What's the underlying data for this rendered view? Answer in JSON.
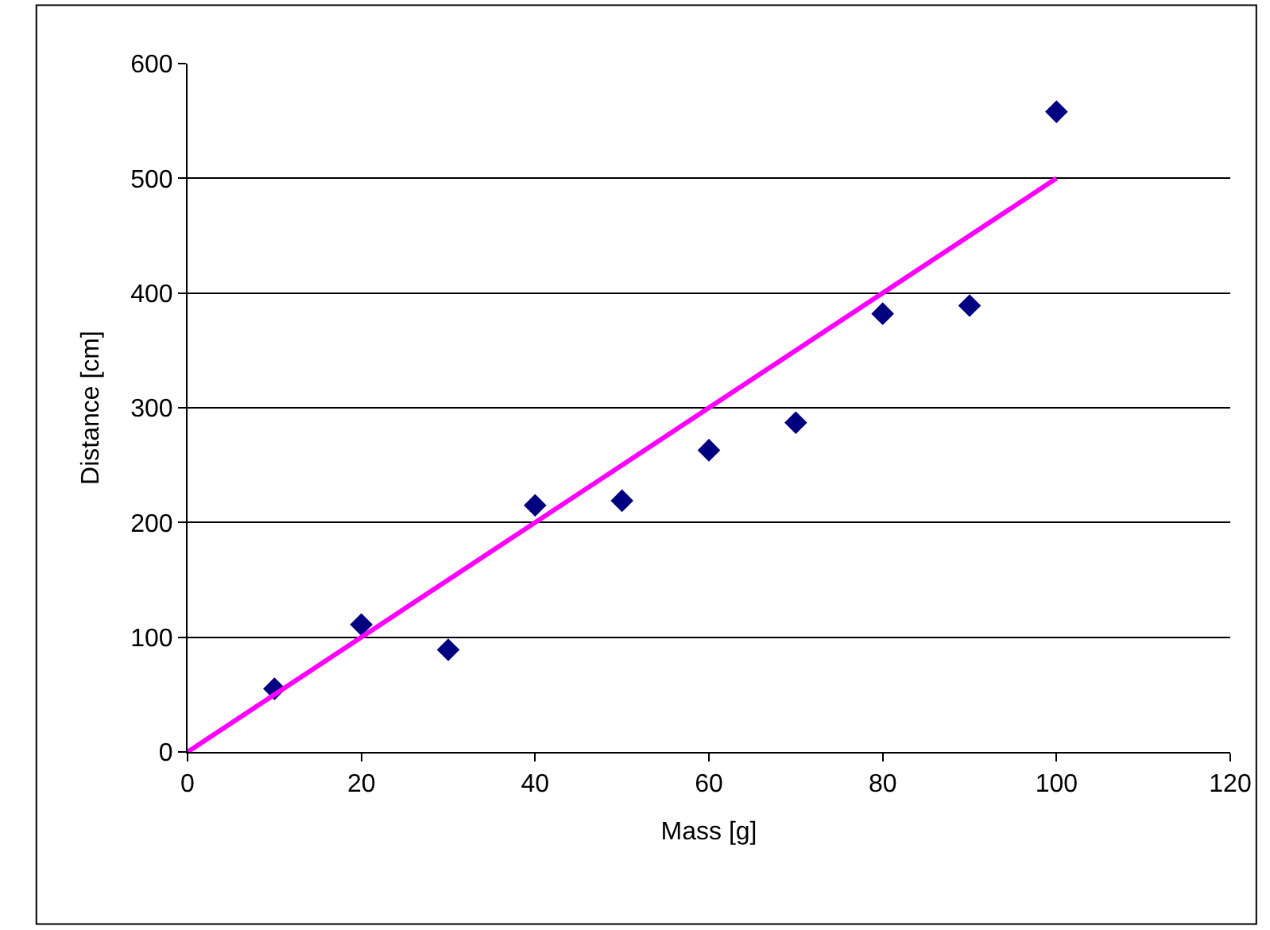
{
  "chart_data": {
    "type": "scatter",
    "xlabel": "Mass [g]",
    "ylabel": "Distance [cm]",
    "xlim": [
      0,
      120
    ],
    "xticks": [
      0,
      20,
      40,
      60,
      80,
      100,
      120
    ],
    "ylim": [
      0,
      600
    ],
    "yticks": [
      0,
      100,
      200,
      300,
      400,
      500,
      600
    ],
    "grid": "y",
    "series": [
      {
        "color": "#000080",
        "marker": "diamond",
        "x": [
          10,
          20,
          30,
          40,
          50,
          60,
          70,
          80,
          90,
          100
        ],
        "values": [
          55,
          111,
          89,
          215,
          219,
          263,
          287,
          382,
          389,
          558
        ]
      },
      {
        "type": "line",
        "color": "#ff00ff",
        "marker": "none",
        "line_style": "solid",
        "x": [
          0,
          100
        ],
        "values": [
          0,
          500
        ]
      }
    ]
  }
}
